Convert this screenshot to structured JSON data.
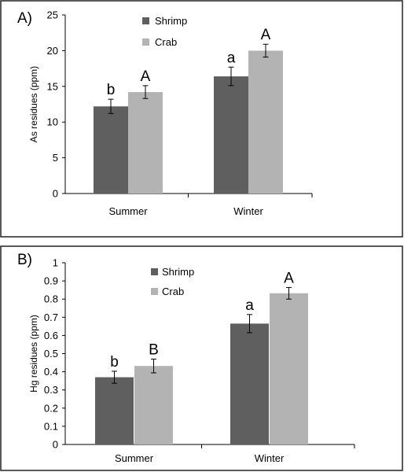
{
  "colors": {
    "shrimp": "#5f5f5f",
    "crab": "#b3b3b3"
  },
  "chart_data": [
    {
      "panel": "A)",
      "type": "bar",
      "ylabel": "As residues (ppm)",
      "ylim": [
        0,
        25
      ],
      "yticks": [
        "0",
        "5",
        "10",
        "15",
        "20",
        "25"
      ],
      "categories": [
        "Summer",
        "Winter"
      ],
      "legend_placement": "top-center",
      "series": [
        {
          "name": "Shrimp",
          "values": [
            12.2,
            16.4
          ],
          "errors": [
            1.0,
            1.3
          ],
          "sig": [
            "b",
            "a"
          ]
        },
        {
          "name": "Crab",
          "values": [
            14.2,
            20.0
          ],
          "errors": [
            0.9,
            0.9
          ],
          "sig": [
            "A",
            "A"
          ]
        }
      ]
    },
    {
      "panel": "B)",
      "type": "bar",
      "ylabel": "Hg residues (ppm)",
      "ylim": [
        0,
        1
      ],
      "yticks": [
        "0",
        "0.1",
        "0.2",
        "0.3",
        "0.4",
        "0.5",
        "0.6",
        "0.7",
        "0.8",
        "0.9",
        "1"
      ],
      "categories": [
        "Summer",
        "Winter"
      ],
      "legend_placement": "top-center",
      "series": [
        {
          "name": "Shrimp",
          "values": [
            0.37,
            0.665
          ],
          "errors": [
            0.033,
            0.05
          ],
          "sig": [
            "b",
            "a"
          ]
        },
        {
          "name": "Crab",
          "values": [
            0.432,
            0.832
          ],
          "errors": [
            0.038,
            0.032
          ],
          "sig": [
            "B",
            "A"
          ]
        }
      ]
    }
  ]
}
